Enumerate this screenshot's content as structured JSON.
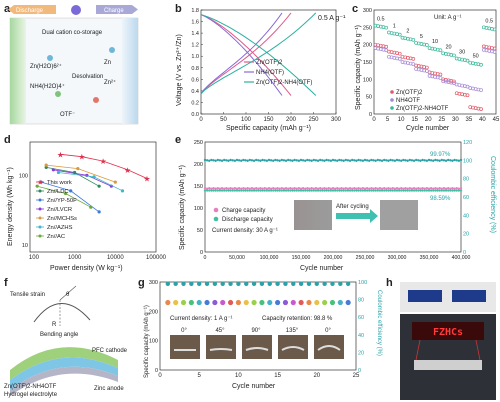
{
  "panels": {
    "a": {
      "letter": "a",
      "discharge": "Discharge",
      "charge": "Charge",
      "costorage": "Dual cation co-storage",
      "zn_ion": "Zn(H2O)6²⁺",
      "nh4_ion": "NH4(H2O)4⁺",
      "desolvation": "Desolvation",
      "zn": "Zn",
      "zn2": "Zn²⁺",
      "otf": "OTF⁻"
    },
    "b": {
      "letter": "b",
      "rate": "0.5 A g⁻¹",
      "legend0": "Zn(OTF)2",
      "legend1": "NH4(OTF)",
      "legend2": "Zn(OTF)2-NH4(OTF)",
      "xlabel": "Specific capacity (mAh g⁻¹)",
      "ylabel": "Voltage (V vs. Zn²⁺/Zn)"
    },
    "c": {
      "letter": "c",
      "unit": "Unit: A g⁻¹",
      "legend0": "Zn(OTF)2",
      "legend1": "NH4OTF",
      "legend2": "Zn(OTF)2-NH4OTF",
      "xlabel": "Cycle number",
      "ylabel": "Specific capacity (mAh g⁻¹)"
    },
    "d": {
      "letter": "d",
      "xlabel": "Power density (W kg⁻¹)",
      "ylabel": "Energy density (Wh kg⁻¹)"
    },
    "e": {
      "letter": "e",
      "ce_label": "99.97%",
      "retention_label": "98.59%",
      "legend_charge": "Charge capacity",
      "legend_discharge": "Discharge capacity",
      "current": "Current density: 30 A g⁻¹",
      "after": "After cycling",
      "xlabel": "Cycle number",
      "ylabel": "Specific capacity (mAh g⁻¹)",
      "y2label": "Coulombic efficiency (%)"
    },
    "f": {
      "letter": "f",
      "tensile": "Tensile strain",
      "theta": "θ",
      "r": "R",
      "bending": "Bending angle",
      "pfc": "PFC cathode",
      "hydrogel1": "Zn(OTF)2-NH4OTF",
      "hydrogel2": "Hydrogel electrolyte",
      "zinc": "Zinc anode"
    },
    "g": {
      "letter": "g",
      "current": "Current density: 1 A g⁻¹",
      "retention": "Capacity retention: 98.8 %",
      "xlabel": "Cycle number",
      "ylabel": "Specific capacity (mAh g⁻¹)",
      "y2label": "Coulombic efficiency (%)"
    },
    "h": {
      "letter": "h",
      "led_text": "FZHCs"
    }
  },
  "chart_data": [
    {
      "panel": "b",
      "type": "line",
      "xlabel": "Specific capacity (mAh g⁻¹)",
      "ylabel": "Voltage (V vs. Zn²⁺/Zn)",
      "xlim": [
        0,
        300
      ],
      "ylim": [
        0,
        1.8
      ],
      "xticks": [
        0,
        50,
        100,
        150,
        200,
        250,
        300
      ],
      "yticks": [
        0,
        0.2,
        0.4,
        0.6,
        0.8,
        1.0,
        1.2,
        1.4,
        1.6,
        1.8
      ],
      "series": [
        {
          "name": "Zn(OTF)2",
          "color": "#e05a8a",
          "capacity": 200
        },
        {
          "name": "NH4(OTF)",
          "color": "#8a6ad8",
          "capacity": 180
        },
        {
          "name": "Zn(OTF)2-NH4(OTF)",
          "color": "#2ab0a0",
          "capacity": 255
        }
      ]
    },
    {
      "panel": "c",
      "type": "scatter",
      "xlabel": "Cycle number",
      "ylabel": "Specific capacity (mAh g⁻¹)",
      "xlim": [
        0,
        45
      ],
      "ylim": [
        0,
        300
      ],
      "xticks": [
        0,
        5,
        10,
        15,
        20,
        25,
        30,
        35,
        40,
        45
      ],
      "yticks": [
        0,
        50,
        100,
        150,
        200,
        250,
        300
      ],
      "rates": [
        "0.5",
        "1",
        "2",
        "5",
        "10",
        "20",
        "30",
        "50",
        "0.5"
      ],
      "series": [
        {
          "name": "Zn(OTF)2",
          "color": "#e05a6a",
          "values": [
            200,
            180,
            165,
            140,
            120,
            100,
            60,
            20,
            195
          ]
        },
        {
          "name": "NH4OTF",
          "color": "#a58ad8",
          "values": [
            190,
            165,
            150,
            130,
            110,
            95,
            85,
            75,
            185
          ]
        },
        {
          "name": "Zn(OTF)2-NH4OTF",
          "color": "#3cb89a",
          "values": [
            255,
            235,
            220,
            205,
            190,
            175,
            160,
            148,
            250
          ]
        }
      ]
    },
    {
      "panel": "d",
      "type": "scatter",
      "scale": "log",
      "xlabel": "Power density (W kg⁻¹)",
      "ylabel": "Energy density (Wh kg⁻¹)",
      "xticks": [
        100,
        1000,
        10000,
        100000
      ],
      "yticks": [
        10,
        100
      ],
      "series": [
        {
          "name": "This work",
          "color": "#e0304a",
          "marker": "star",
          "points": [
            [
              450,
              200
            ],
            [
              1500,
              185
            ],
            [
              5000,
              160
            ],
            [
              20000,
              120
            ],
            [
              60000,
              90
            ]
          ]
        },
        {
          "name": "Zn//LDC",
          "color": "#2a8a5a",
          "marker": "circle",
          "points": [
            [
              200,
              130
            ],
            [
              1000,
              110
            ],
            [
              4000,
              70
            ]
          ]
        },
        {
          "name": "Zn//YP-50F",
          "color": "#3c7ad8",
          "marker": "triangle",
          "points": [
            [
              150,
              80
            ],
            [
              800,
              60
            ],
            [
              4000,
              30
            ]
          ]
        },
        {
          "name": "Zn//LVCR",
          "color": "#8a3ad8",
          "marker": "circle",
          "points": [
            [
              300,
              120
            ],
            [
              2000,
              100
            ],
            [
              8000,
              70
            ]
          ]
        },
        {
          "name": "Zn//MCHSs",
          "color": "#d89a3a",
          "marker": "circle",
          "points": [
            [
              200,
              140
            ],
            [
              1200,
              125
            ],
            [
              10000,
              80
            ]
          ]
        },
        {
          "name": "Zn//AZHS",
          "color": "#3cb8c8",
          "marker": "circle",
          "points": [
            [
              400,
              110
            ],
            [
              3000,
              95
            ],
            [
              15000,
              60
            ]
          ]
        },
        {
          "name": "Zn//AC",
          "color": "#6aa83a",
          "marker": "circle",
          "points": [
            [
              120,
              70
            ],
            [
              600,
              55
            ],
            [
              2500,
              35
            ]
          ]
        }
      ]
    },
    {
      "panel": "e",
      "type": "scatter",
      "xlabel": "Cycle number",
      "ylabel": "Specific capacity (mAh g⁻¹)",
      "y2label": "Coulombic efficiency (%)",
      "xlim": [
        0,
        400000
      ],
      "ylim": [
        0,
        250
      ],
      "y2lim": [
        0,
        120
      ],
      "xticks": [
        0,
        50000,
        100000,
        150000,
        200000,
        250000,
        300000,
        350000,
        400000
      ],
      "yticks": [
        0,
        50,
        100,
        150,
        200,
        250
      ],
      "y2ticks": [
        0,
        20,
        40,
        60,
        80,
        100,
        120
      ],
      "series": [
        {
          "name": "Charge capacity",
          "color": "#e57fc2",
          "value": 145
        },
        {
          "name": "Discharge capacity",
          "color": "#3fc0a0",
          "value": 142
        },
        {
          "name": "Coulombic efficiency",
          "color": "#2aa3a8",
          "value": 99.97
        }
      ]
    },
    {
      "panel": "g",
      "type": "scatter",
      "xlabel": "Cycle number",
      "ylabel": "Specific capacity (mAh g⁻¹)",
      "y2label": "Coulombic efficiency (%)",
      "xlim": [
        0,
        25
      ],
      "ylim": [
        0,
        300
      ],
      "y2lim": [
        0,
        100
      ],
      "xticks": [
        0,
        5,
        10,
        15,
        20,
        25
      ],
      "yticks": [
        0,
        100,
        200,
        300
      ],
      "y2ticks": [
        0,
        20,
        40,
        60,
        80,
        100
      ],
      "capacity": 230,
      "ce": 98,
      "photo_angles": [
        "0°",
        "45°",
        "90°",
        "135°",
        "0°"
      ]
    }
  ]
}
